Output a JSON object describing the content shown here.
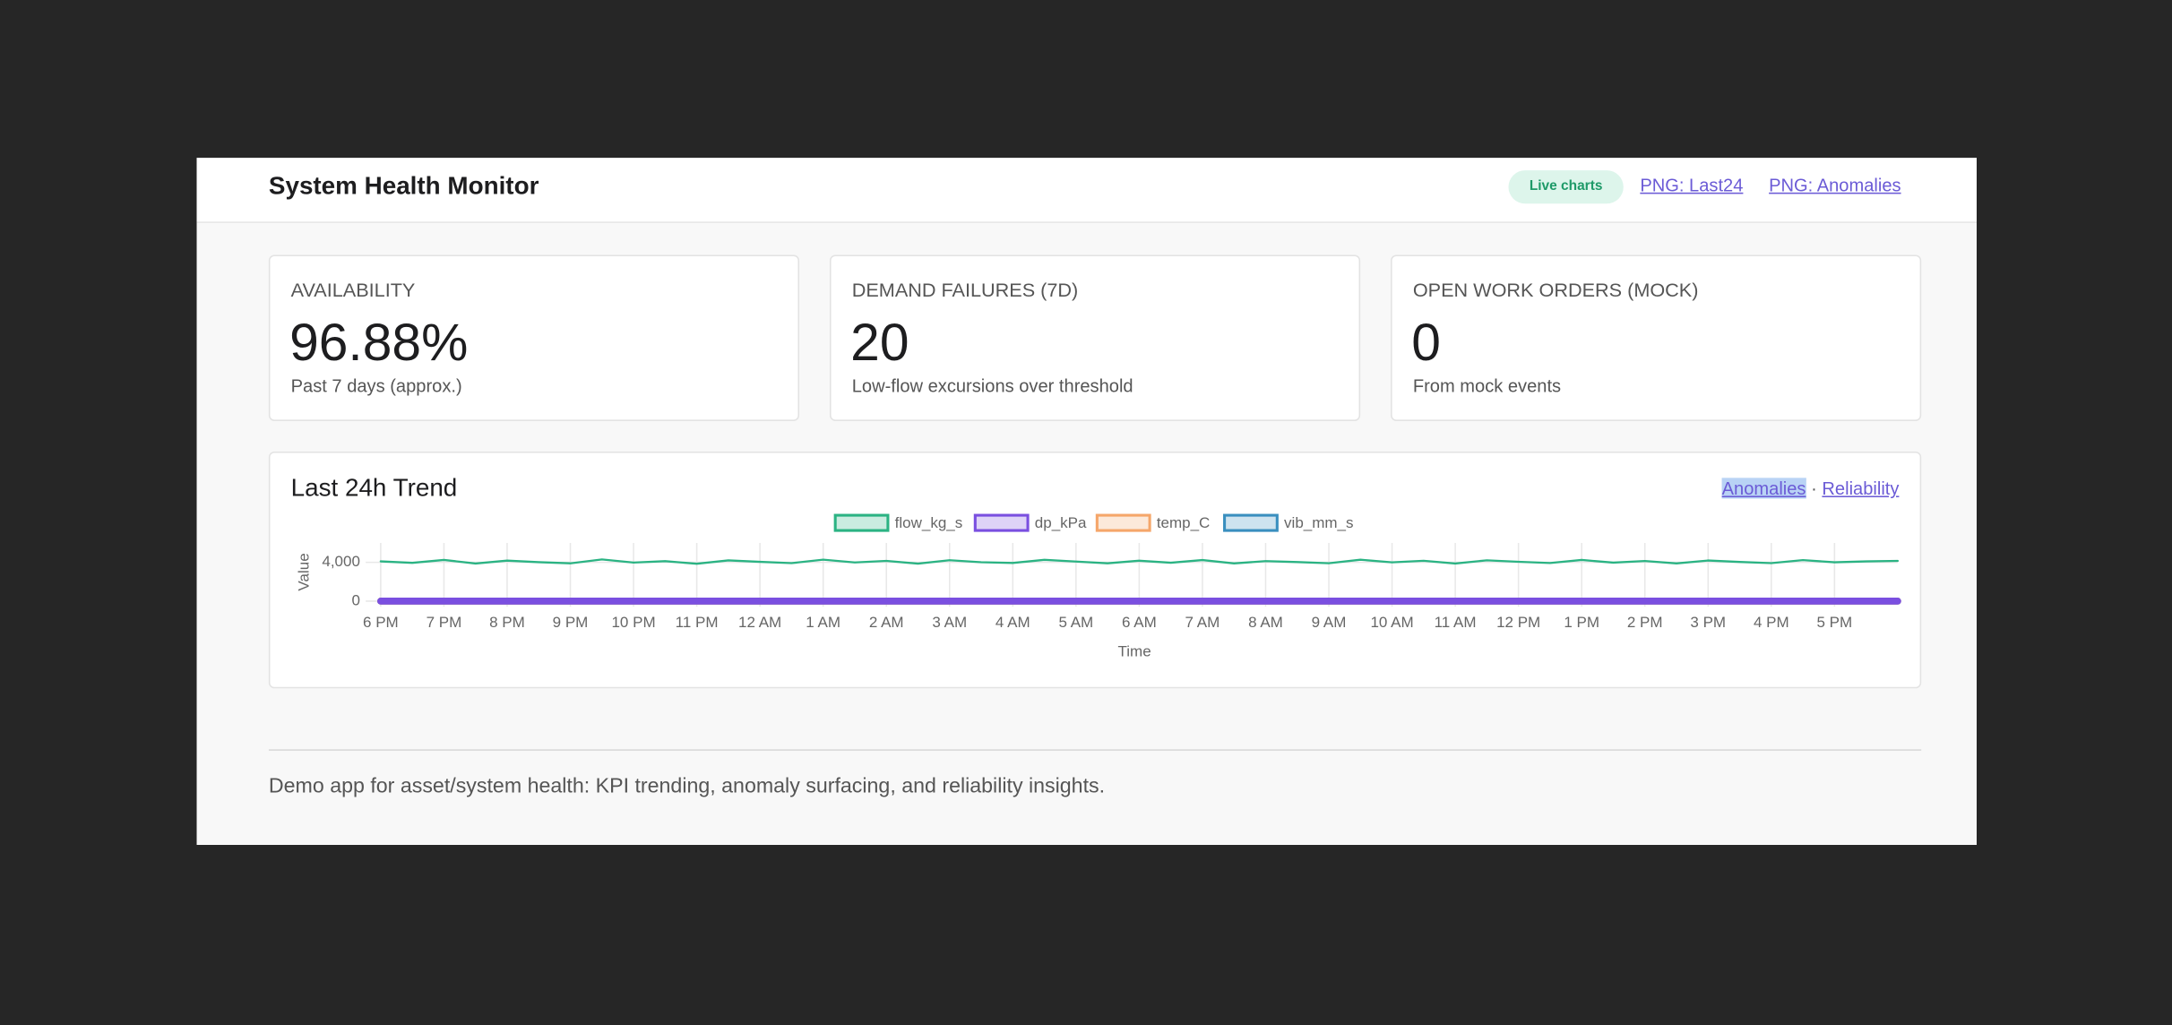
{
  "header": {
    "title": "System Health Monitor",
    "badge": "Live charts",
    "links": [
      "PNG: Last24",
      "PNG: Anomalies"
    ]
  },
  "kpis": [
    {
      "label": "AVAILABILITY",
      "value": "96.88%",
      "note": "Past 7 days (approx.)"
    },
    {
      "label": "DEMAND FAILURES (7D)",
      "value": "20",
      "note": "Low-flow excursions over threshold"
    },
    {
      "label": "OPEN WORK ORDERS (MOCK)",
      "value": "0",
      "note": "From mock events"
    }
  ],
  "chart_links": {
    "items": [
      "Anomalies",
      "Reliability"
    ],
    "separator": "·"
  },
  "chart_data": {
    "type": "line",
    "title": "Last 24h Trend",
    "x_label": "Time",
    "y_label": "Value",
    "x": [
      0,
      0.5,
      1,
      1.5,
      2,
      2.5,
      3,
      3.5,
      4,
      4.5,
      5,
      5.5,
      6,
      6.5,
      7,
      7.5,
      8,
      8.5,
      9,
      9.5,
      10,
      10.5,
      11,
      11.5,
      12,
      12.5,
      13,
      13.5,
      14,
      14.5,
      15,
      15.5,
      16,
      16.5,
      17,
      17.5,
      18,
      18.5,
      19,
      19.5,
      20,
      20.5,
      21,
      21.5,
      22,
      22.5,
      23,
      23.5,
      24
    ],
    "series": [
      {
        "name": "flow_kg_s",
        "color": "#2bb383",
        "values": [
          4100,
          3950,
          4250,
          3880,
          4180,
          4020,
          3900,
          4300,
          3980,
          4120,
          3860,
          4200,
          4050,
          3920,
          4280,
          3990,
          4150,
          3870,
          4220,
          4010,
          3940,
          4260,
          4080,
          3900,
          4170,
          3960,
          4240,
          3890,
          4130,
          4030,
          3910,
          4270,
          4000,
          4160,
          3880,
          4210,
          4060,
          3930,
          4250,
          3970,
          4140,
          3890,
          4190,
          4040,
          3920,
          4230,
          4010,
          4100,
          4150
        ]
      },
      {
        "name": "dp_kPa",
        "color": "#7a4fe0",
        "values": [
          0,
          0,
          0,
          0,
          0,
          0,
          0,
          0,
          0,
          0,
          0,
          0,
          0,
          0,
          0,
          0,
          0,
          0,
          0,
          0,
          0,
          0,
          0,
          0,
          0,
          0,
          0,
          0,
          0,
          0,
          0,
          0,
          0,
          0,
          0,
          0,
          0,
          0,
          0,
          0,
          0,
          0,
          0,
          0,
          0,
          0,
          0,
          0,
          0
        ]
      },
      {
        "name": "temp_C",
        "color": "#f5a66a",
        "values": [
          0,
          0,
          0,
          0,
          0,
          0,
          0,
          0,
          0,
          0,
          0,
          0,
          0,
          0,
          0,
          0,
          0,
          0,
          0,
          0,
          0,
          0,
          0,
          0,
          0,
          0,
          0,
          0,
          0,
          0,
          0,
          0,
          0,
          0,
          0,
          0,
          0,
          0,
          0,
          0,
          0,
          0,
          0,
          0,
          0,
          0,
          0,
          0,
          0
        ]
      },
      {
        "name": "vib_mm_s",
        "color": "#3a8fbf",
        "values": [
          0,
          0,
          0,
          0,
          0,
          0,
          0,
          0,
          0,
          0,
          0,
          0,
          0,
          0,
          0,
          0,
          0,
          0,
          0,
          0,
          0,
          0,
          0,
          0,
          0,
          0,
          0,
          0,
          0,
          0,
          0,
          0,
          0,
          0,
          0,
          0,
          0,
          0,
          0,
          0,
          0,
          0,
          0,
          0,
          0,
          0,
          0,
          0,
          0
        ]
      }
    ],
    "xlim": [
      -0.15,
      24
    ],
    "ylim": [
      0,
      6000
    ],
    "yticks": [
      0,
      {
        "value": 4000,
        "label": "4,000"
      }
    ],
    "xticks": [
      {
        "value": 0,
        "label": "6 PM"
      },
      {
        "value": 1,
        "label": "7 PM"
      },
      {
        "value": 2,
        "label": "8 PM"
      },
      {
        "value": 3,
        "label": "9 PM"
      },
      {
        "value": 4,
        "label": "10 PM"
      },
      {
        "value": 5,
        "label": "11 PM"
      },
      {
        "value": 6,
        "label": "12 AM"
      },
      {
        "value": 7,
        "label": "1 AM"
      },
      {
        "value": 8,
        "label": "2 AM"
      },
      {
        "value": 9,
        "label": "3 AM"
      },
      {
        "value": 10,
        "label": "4 AM"
      },
      {
        "value": 11,
        "label": "5 AM"
      },
      {
        "value": 12,
        "label": "6 AM"
      },
      {
        "value": 13,
        "label": "7 AM"
      },
      {
        "value": 14,
        "label": "8 AM"
      },
      {
        "value": 15,
        "label": "9 AM"
      },
      {
        "value": 16,
        "label": "10 AM"
      },
      {
        "value": 17,
        "label": "11 AM"
      },
      {
        "value": 18,
        "label": "12 PM"
      },
      {
        "value": 19,
        "label": "1 PM"
      },
      {
        "value": 20,
        "label": "2 PM"
      },
      {
        "value": 21,
        "label": "3 PM"
      },
      {
        "value": 22,
        "label": "4 PM"
      },
      {
        "value": 23,
        "label": "5 PM"
      }
    ],
    "grid": true
  },
  "footer": {
    "text": "Demo app for asset/system health: KPI trending, anomaly surfacing, and reliability insights."
  }
}
